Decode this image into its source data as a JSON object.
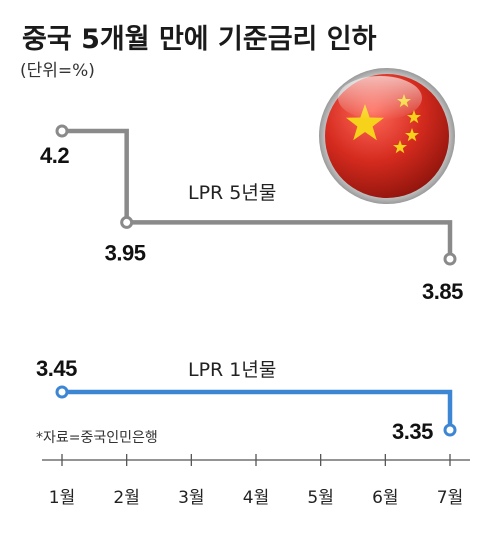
{
  "header": {
    "title": "중국 5개월 만에 기준금리 인하",
    "unit": "(단위=%)"
  },
  "source": "*자료=중국인민은행",
  "colors": {
    "lpr5": "#8a8a8a",
    "lpr1": "#3d86d3",
    "axis": "#555555",
    "flag_red": "#d42a1e",
    "flag_star": "#f7d21a"
  },
  "icons": {
    "flag": "china-flag-icon"
  },
  "chart_data": {
    "type": "line",
    "step": true,
    "categories": [
      "1월",
      "2월",
      "3월",
      "4월",
      "5월",
      "6월",
      "7월"
    ],
    "series": [
      {
        "name": "LPR 5년물",
        "values": [
          4.2,
          3.95,
          3.95,
          3.95,
          3.95,
          3.95,
          3.85
        ],
        "labels": [
          {
            "index": 0,
            "text": "4.2"
          },
          {
            "index": 1,
            "text": "3.95"
          },
          {
            "index": 6,
            "text": "3.85"
          }
        ]
      },
      {
        "name": "LPR 1년물",
        "values": [
          3.45,
          3.45,
          3.45,
          3.45,
          3.45,
          3.45,
          3.35
        ],
        "labels": [
          {
            "index": 0,
            "text": "3.45"
          },
          {
            "index": 6,
            "text": "3.35"
          }
        ]
      }
    ],
    "grid": false,
    "legend": "inline"
  }
}
